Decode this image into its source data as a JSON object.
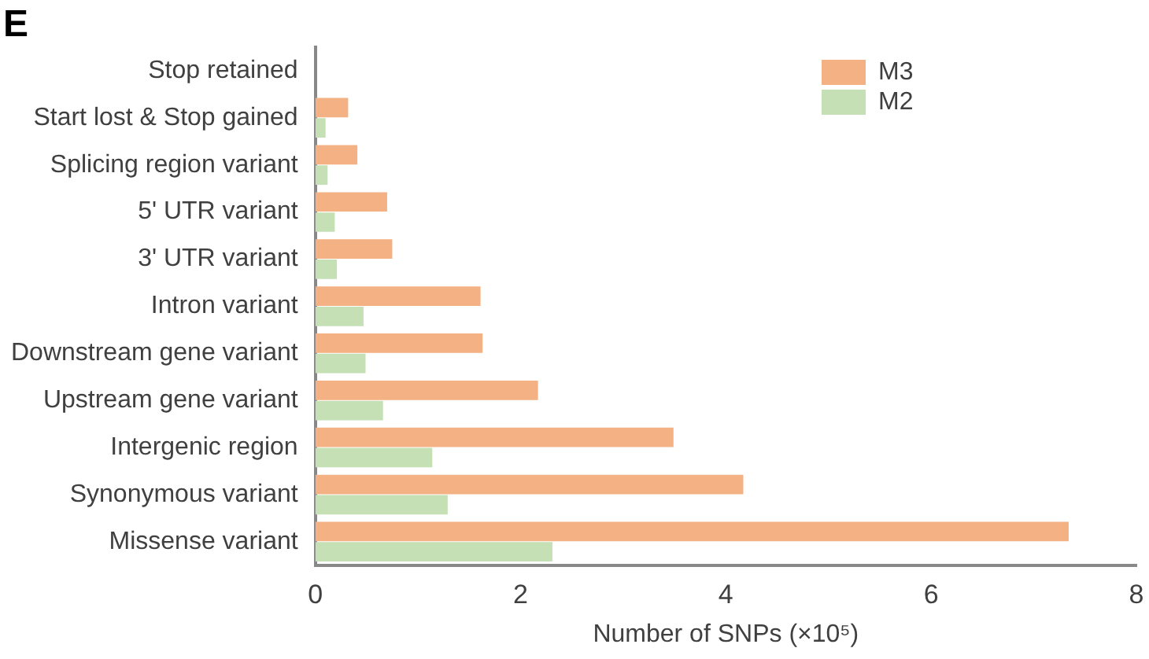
{
  "chart_data": {
    "type": "bar",
    "orientation": "horizontal",
    "annotations": [
      "E"
    ],
    "xlabel": "Number of SNPs (×10⁵)",
    "categories": [
      "Stop retained",
      "Start lost & Stop gained",
      "Splicing region variant",
      "5' UTR variant",
      "3' UTR variant",
      "Intron variant",
      "Downstream gene variant",
      "Upstream gene variant",
      "Intergenic region",
      "Synonymous variant",
      "Missense variant"
    ],
    "series": [
      {
        "name": "M3",
        "color": "#f4b183",
        "values": [
          0,
          0.32,
          0.41,
          0.7,
          0.75,
          1.61,
          1.63,
          2.17,
          3.49,
          4.17,
          7.34
        ]
      },
      {
        "name": "M2",
        "color": "#c5e0b4",
        "values": [
          0,
          0.1,
          0.12,
          0.19,
          0.21,
          0.47,
          0.49,
          0.66,
          1.14,
          1.29,
          2.31
        ]
      }
    ],
    "xlim": [
      0,
      8
    ],
    "xticks": [
      0,
      2,
      4,
      6,
      8
    ],
    "grid": false,
    "legend": "top right"
  }
}
